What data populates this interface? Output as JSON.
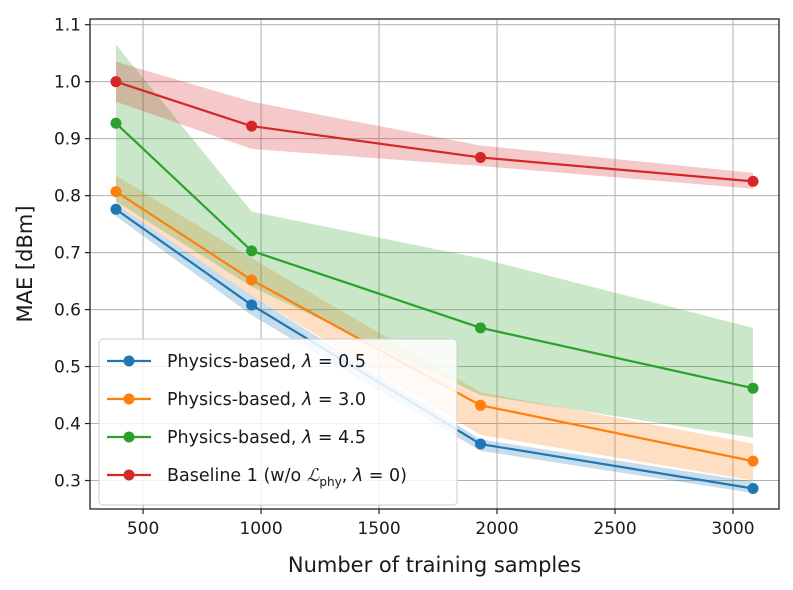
{
  "chart_data": {
    "type": "line",
    "title": "",
    "xlabel": "Number of training samples",
    "ylabel": "MAE [dBm]",
    "xlim": [
      275,
      3195
    ],
    "ylim": [
      0.25,
      1.11
    ],
    "xticks": [
      500,
      1000,
      1500,
      2000,
      2500,
      3000
    ],
    "yticks": [
      0.3,
      0.4,
      0.5,
      0.6,
      0.7,
      0.8,
      0.9,
      1.0,
      1.1
    ],
    "x": [
      385,
      960,
      1930,
      3085
    ],
    "grid": true,
    "legend_position": "lower-left",
    "series": [
      {
        "name": "Physics-based, λ = 0.5",
        "label_prefix": "Physics-based, ",
        "label_var": "λ",
        "label_value": " = 0.5",
        "color": "#1f77b4",
        "values": [
          0.776,
          0.608,
          0.364,
          0.286
        ],
        "lower": [
          0.764,
          0.59,
          0.352,
          0.278
        ],
        "upper": [
          0.785,
          0.625,
          0.372,
          0.298
        ]
      },
      {
        "name": "Physics-based, λ = 3.0",
        "label_prefix": "Physics-based, ",
        "label_var": "λ",
        "label_value": " = 3.0",
        "color": "#ff7f0e",
        "values": [
          0.807,
          0.652,
          0.432,
          0.334
        ],
        "lower": [
          0.785,
          0.625,
          0.38,
          0.3
        ],
        "upper": [
          0.835,
          0.69,
          0.455,
          0.365
        ]
      },
      {
        "name": "Physics-based, λ = 4.5",
        "label_prefix": "Physics-based, ",
        "label_var": "λ",
        "label_value": " = 4.5",
        "color": "#2ca02c",
        "values": [
          0.927,
          0.703,
          0.568,
          0.462
        ],
        "lower": [
          0.79,
          0.64,
          0.45,
          0.375
        ],
        "upper": [
          1.065,
          0.772,
          0.69,
          0.568
        ]
      },
      {
        "name": "Baseline 1 (w/o ℒphy, λ = 0)",
        "label_prefix": "Baseline 1 (w/o ",
        "label_script": "ℒ",
        "label_sub": "phy",
        "label_mid": ", ",
        "label_var": "λ",
        "label_value": " = 0)",
        "color": "#d62728",
        "values": [
          1.0,
          0.922,
          0.867,
          0.825
        ],
        "lower": [
          0.965,
          0.882,
          0.852,
          0.812
        ],
        "upper": [
          1.035,
          0.965,
          0.888,
          0.84
        ]
      }
    ]
  }
}
